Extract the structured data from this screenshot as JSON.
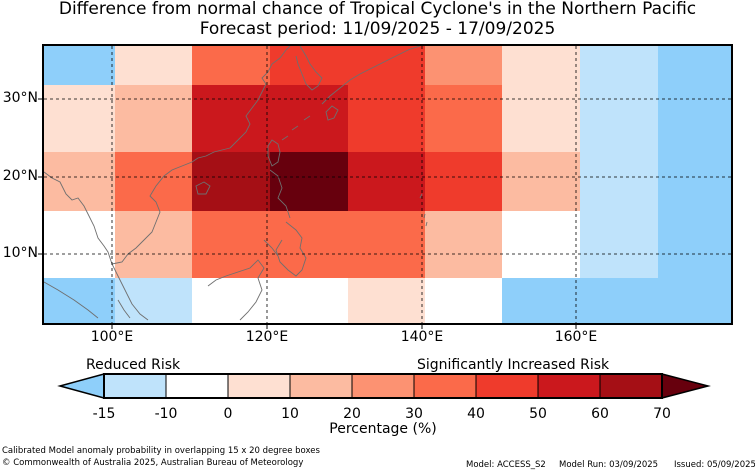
{
  "title": {
    "line1": "Difference from normal chance of Tropical Cyclone's in the Northern Pacific",
    "line2": "Forecast period: 11/09/2025 - 17/09/2025"
  },
  "map": {
    "lat_ticks": [
      "30°N",
      "20°N",
      "10°N"
    ],
    "lon_ticks": [
      "100°E",
      "120°E",
      "140°E",
      "160°E"
    ],
    "rows": [
      [
        "c_-15",
        "c_0",
        "c_30",
        "c_40",
        "c_40",
        "c_20",
        "c_0",
        "c_-10",
        "c_-15"
      ],
      [
        "c_0",
        "c_10",
        "c_50",
        "c_50",
        "c_40",
        "c_30",
        "c_0",
        "c_-10",
        "c_-15"
      ],
      [
        "c_10",
        "c_30",
        "c_60",
        "c_70",
        "c_50",
        "c_40",
        "c_10",
        "c_-10",
        "c_-15"
      ],
      [
        "c_w",
        "c_10",
        "c_30",
        "c_30",
        "c_30",
        "c_10",
        "c_w",
        "c_-10",
        "c_-15"
      ],
      [
        "c_-15",
        "c_-10",
        "c_w",
        "c_w",
        "c_0",
        "c_w",
        "c_-15",
        "c_-15",
        "c_-15"
      ]
    ]
  },
  "colorbar": {
    "label_left": "Reduced Risk",
    "label_right": "Significantly Increased Risk",
    "ticks": [
      "-15",
      "-10",
      "0",
      "10",
      "20",
      "30",
      "40",
      "50",
      "60",
      "70"
    ],
    "xlabel": "Percentage (%)",
    "bins": [
      {
        "color": "#bfe3fb"
      },
      {
        "color": "#ffffff"
      },
      {
        "color": "#fee0d2"
      },
      {
        "color": "#fcbba1"
      },
      {
        "color": "#fc9272"
      },
      {
        "color": "#fb6a4a"
      },
      {
        "color": "#ef3b2c"
      },
      {
        "color": "#cb181d"
      },
      {
        "color": "#a50f15"
      }
    ],
    "under_color": "#8ecffa",
    "over_color": "#67000d"
  },
  "colors": {
    "c_-15": "#8ecffa",
    "c_-10": "#bfe3fb",
    "c_w": "#ffffff",
    "c_0": "#fee0d2",
    "c_10": "#fcbba1",
    "c_20": "#fc9272",
    "c_30": "#fb6a4a",
    "c_40": "#ef3b2c",
    "c_50": "#cb181d",
    "c_60": "#a50f15",
    "c_70": "#67000d"
  },
  "footer": {
    "line1": "Calibrated Model anomaly probability in overlapping 15 x 20 degree boxes",
    "line2": "© Commonwealth of Australia 2025, Australian Bureau of Meteorology",
    "model": "Model: ACCESS_S2",
    "model_run": "Model Run: 03/09/2025",
    "issued": "Issued: 05/09/2025"
  }
}
